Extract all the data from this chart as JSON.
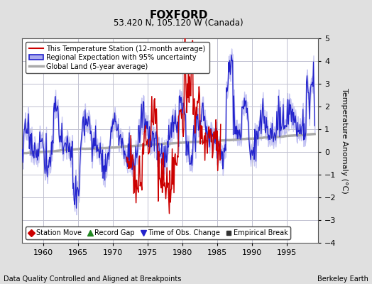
{
  "title": "FOXFORD",
  "subtitle": "53.420 N, 105.120 W (Canada)",
  "ylabel": "Temperature Anomaly (°C)",
  "footer_left": "Data Quality Controlled and Aligned at Breakpoints",
  "footer_right": "Berkeley Earth",
  "xlim": [
    1957,
    1999.5
  ],
  "ylim": [
    -4,
    5
  ],
  "yticks": [
    -4,
    -3,
    -2,
    -1,
    0,
    1,
    2,
    3,
    4,
    5
  ],
  "xticks": [
    1960,
    1965,
    1970,
    1975,
    1980,
    1985,
    1990,
    1995
  ],
  "bg_color": "#e0e0e0",
  "plot_bg_color": "#ffffff",
  "grid_color": "#c0c0d0",
  "title_fontsize": 11,
  "subtitle_fontsize": 8.5,
  "tick_fontsize": 8,
  "legend_fontsize": 7,
  "footer_fontsize": 7,
  "ylabel_fontsize": 8,
  "regional_color": "#2222cc",
  "regional_fill": "#aaaaee",
  "station_color": "#cc0000",
  "global_color": "#aaaaaa",
  "legend_items": [
    {
      "label": "This Temperature Station (12-month average)",
      "color": "#cc0000",
      "lw": 1.5
    },
    {
      "label": "Regional Expectation with 95% uncertainty",
      "color": "#2222cc",
      "lw": 1.5
    },
    {
      "label": "Global Land (5-year average)",
      "color": "#aaaaaa",
      "lw": 2.5
    }
  ],
  "marker_items": [
    {
      "label": "Station Move",
      "marker": "D",
      "color": "#cc0000"
    },
    {
      "label": "Record Gap",
      "marker": "^",
      "color": "#228822"
    },
    {
      "label": "Time of Obs. Change",
      "marker": "v",
      "color": "#2222cc"
    },
    {
      "label": "Empirical Break",
      "marker": "s",
      "color": "#333333"
    }
  ]
}
